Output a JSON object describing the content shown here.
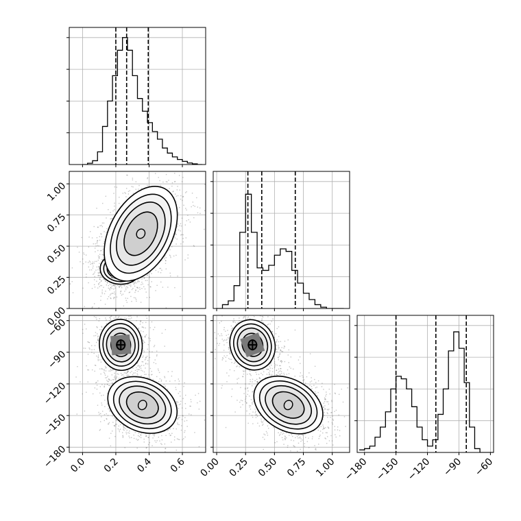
{
  "chart_data": {
    "type": "corner",
    "parameters": [
      {
        "xlim": [
          -0.08,
          0.74
        ],
        "xticks": [
          0.0,
          0.2,
          0.4,
          0.6
        ],
        "xtick_labels": [
          "0.0",
          "0.2",
          "0.4",
          "0.6"
        ],
        "quantiles": [
          0.2,
          0.265,
          0.395
        ],
        "histogram": {
          "bin_edges": [
            0.0,
            0.03,
            0.06,
            0.09,
            0.12,
            0.15,
            0.18,
            0.21,
            0.24,
            0.27,
            0.3,
            0.33,
            0.36,
            0.39,
            0.42,
            0.45,
            0.48,
            0.51,
            0.54,
            0.57,
            0.6,
            0.63,
            0.66,
            0.69,
            0.72
          ],
          "counts": [
            0.0,
            0.01,
            0.03,
            0.1,
            0.3,
            0.5,
            0.7,
            0.9,
            1.0,
            0.9,
            0.7,
            0.52,
            0.42,
            0.33,
            0.26,
            0.2,
            0.13,
            0.09,
            0.06,
            0.04,
            0.025,
            0.012,
            0.005,
            0.0
          ]
        }
      },
      {
        "ylim": [
          0.0,
          1.1
        ],
        "yticks": [
          0.0,
          0.25,
          0.5,
          0.75,
          1.0
        ],
        "ytick_labels": [
          "0.00",
          "0.25",
          "0.50",
          "0.75",
          "1.00"
        ],
        "xlim": [
          -0.03,
          1.15
        ],
        "xticks": [
          0.0,
          0.25,
          0.5,
          0.75,
          1.0
        ],
        "xtick_labels": [
          "0.00",
          "0.25",
          "0.50",
          "0.75",
          "1.00"
        ],
        "quantiles": [
          0.27,
          0.39,
          0.68
        ],
        "histogram": {
          "bin_edges": [
            0.0,
            0.05,
            0.1,
            0.15,
            0.2,
            0.25,
            0.3,
            0.35,
            0.4,
            0.45,
            0.5,
            0.55,
            0.6,
            0.65,
            0.7,
            0.75,
            0.8,
            0.85,
            0.9,
            0.95,
            1.0,
            1.05,
            1.1
          ],
          "counts": [
            0.0,
            0.03,
            0.06,
            0.18,
            0.6,
            0.9,
            0.6,
            0.32,
            0.3,
            0.34,
            0.42,
            0.47,
            0.45,
            0.3,
            0.2,
            0.12,
            0.07,
            0.03,
            0.01,
            0.0,
            0.0,
            0.0
          ]
        }
      },
      {
        "ylim": [
          -185,
          -55
        ],
        "yticks": [
          -180,
          -150,
          -120,
          -90,
          -60
        ],
        "ytick_labels": [
          "−180",
          "−150",
          "−120",
          "−90",
          "−60"
        ],
        "xlim": [
          -187,
          -57
        ],
        "xticks": [
          -180,
          -150,
          -120,
          -90,
          -60
        ],
        "xtick_labels": [
          "−180",
          "−150",
          "−120",
          "−90",
          "−60"
        ],
        "quantiles": [
          -150,
          -112,
          -83
        ],
        "histogram": {
          "bin_edges": [
            -185,
            -180,
            -175,
            -170,
            -165,
            -160,
            -155,
            -150,
            -145,
            -140,
            -135,
            -130,
            -125,
            -120,
            -115,
            -110,
            -105,
            -100,
            -95,
            -90,
            -85,
            -80,
            -75,
            -70,
            -65,
            -60,
            -55
          ],
          "counts": [
            0.02,
            0.03,
            0.05,
            0.12,
            0.2,
            0.32,
            0.5,
            0.6,
            0.58,
            0.5,
            0.36,
            0.2,
            0.1,
            0.05,
            0.1,
            0.3,
            0.5,
            0.8,
            0.95,
            0.82,
            0.55,
            0.2,
            0.03,
            0.0,
            0.0,
            0.0
          ]
        }
      }
    ],
    "joint_distributions": [
      {
        "pair": [
          0,
          1
        ],
        "modes": [
          {
            "center": [
              0.23,
              0.32
            ],
            "weight": 0.45
          },
          {
            "center": [
              0.36,
              0.62
            ],
            "weight": 0.55
          }
        ]
      },
      {
        "pair": [
          0,
          2
        ],
        "modes": [
          {
            "center": [
              0.23,
              -83
            ],
            "weight": 0.45
          },
          {
            "center": [
              0.36,
              -140
            ],
            "weight": 0.55
          }
        ]
      },
      {
        "pair": [
          1,
          2
        ],
        "modes": [
          {
            "center": [
              0.31,
              -83
            ],
            "weight": 0.45
          },
          {
            "center": [
              0.62,
              -140
            ],
            "weight": 0.55
          }
        ]
      }
    ],
    "grid": true
  }
}
